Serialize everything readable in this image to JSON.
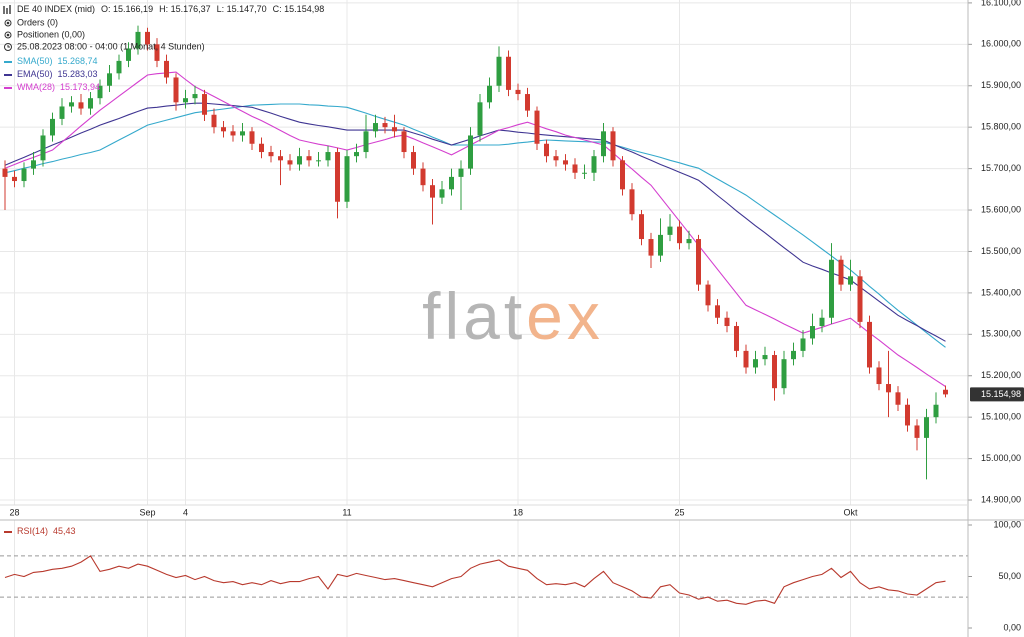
{
  "chart_data": [
    {
      "type": "candlestick",
      "title": "DE 40 INDEX (mid)",
      "ohlc_labels": [
        "O: 15.166,19",
        "H: 15.176,37",
        "L: 15.147,70",
        "C: 15.154,98"
      ],
      "info": [
        "Orders (0)",
        "Positionen (0,00)",
        "25.08.2023 08:00 - 04:00  (1 Monat, 4 Stunden)"
      ],
      "watermark": [
        "flat",
        "ex"
      ],
      "up_color": "#2f9e41",
      "down_color": "#d23a2f",
      "grid": true,
      "categories": [
        null,
        "28",
        null,
        null,
        null,
        null,
        null,
        null,
        null,
        null,
        null,
        null,
        null,
        null,
        null,
        "Sep",
        null,
        null,
        null,
        "4",
        null,
        null,
        null,
        null,
        null,
        null,
        null,
        null,
        null,
        null,
        null,
        null,
        null,
        null,
        null,
        null,
        "11",
        null,
        null,
        null,
        null,
        null,
        null,
        null,
        null,
        null,
        null,
        null,
        null,
        null,
        null,
        null,
        null,
        null,
        "18",
        null,
        null,
        null,
        null,
        null,
        null,
        null,
        null,
        null,
        null,
        null,
        null,
        null,
        null,
        null,
        null,
        "25",
        null,
        null,
        null,
        null,
        null,
        null,
        null,
        null,
        null,
        null,
        null,
        null,
        null,
        null,
        null,
        null,
        null,
        "Okt",
        null,
        null,
        null,
        null,
        null,
        null,
        null,
        null,
        null,
        null
      ],
      "open": [
        15700,
        15680,
        15670,
        15700,
        15720,
        15780,
        15820,
        15850,
        15860,
        15845,
        15870,
        15900,
        15930,
        15960,
        15990,
        16030,
        16000,
        15960,
        15920,
        15860,
        15870,
        15880,
        15830,
        15800,
        15790,
        15780,
        15790,
        15760,
        15740,
        15730,
        15720,
        15710,
        15730,
        15720,
        15720,
        15740,
        15620,
        15730,
        15740,
        15790,
        15810,
        15800,
        15790,
        15740,
        15700,
        15660,
        15630,
        15650,
        15680,
        15700,
        15780,
        15860,
        15900,
        15970,
        15890,
        15880,
        15840,
        15760,
        15730,
        15720,
        15710,
        15690,
        15690,
        15730,
        15790,
        15720,
        15650,
        15590,
        15530,
        15490,
        15540,
        15560,
        15520,
        15530,
        15420,
        15370,
        15340,
        15320,
        15260,
        15220,
        15240,
        15250,
        15170,
        15240,
        15260,
        15290,
        15320,
        15340,
        15480,
        15420,
        15440,
        15330,
        15220,
        15180,
        15160,
        15130,
        15080,
        15050,
        15100,
        15166.19
      ],
      "high": [
        15720,
        15695,
        15715,
        15740,
        15795,
        15835,
        15870,
        15875,
        15880,
        15885,
        15915,
        15950,
        15975,
        16005,
        16045,
        16040,
        16015,
        15975,
        15930,
        15890,
        15900,
        15890,
        15845,
        15815,
        15805,
        15810,
        15800,
        15775,
        15755,
        15745,
        15735,
        15750,
        15745,
        15740,
        15755,
        15750,
        15745,
        15760,
        15830,
        15830,
        15825,
        15830,
        15800,
        15755,
        15715,
        15675,
        15670,
        15700,
        15720,
        15800,
        15880,
        15920,
        15995,
        15985,
        15905,
        15895,
        15850,
        15770,
        15745,
        15735,
        15725,
        15710,
        15745,
        15810,
        15800,
        15730,
        15665,
        15600,
        15545,
        15580,
        15590,
        15575,
        15550,
        15540,
        15430,
        15385,
        15355,
        15330,
        15275,
        15260,
        15270,
        15260,
        15260,
        15280,
        15310,
        15350,
        15360,
        15520,
        15490,
        15480,
        15455,
        15345,
        15235,
        15260,
        15175,
        15145,
        15095,
        15120,
        15160,
        15176.37
      ],
      "low": [
        15600,
        15655,
        15655,
        15685,
        15705,
        15765,
        15805,
        15835,
        15830,
        15830,
        15855,
        15885,
        15915,
        15945,
        15975,
        15985,
        15945,
        15905,
        15840,
        15845,
        15855,
        15815,
        15785,
        15775,
        15765,
        15765,
        15745,
        15725,
        15715,
        15660,
        15695,
        15695,
        15705,
        15705,
        15705,
        15580,
        15605,
        15715,
        15725,
        15775,
        15785,
        15775,
        15725,
        15685,
        15645,
        15565,
        15615,
        15635,
        15600,
        15685,
        15765,
        15845,
        15885,
        15875,
        15865,
        15825,
        15745,
        15715,
        15705,
        15695,
        15675,
        15675,
        15670,
        15715,
        15705,
        15635,
        15575,
        15515,
        15460,
        15475,
        15525,
        15505,
        15505,
        15405,
        15355,
        15325,
        15305,
        15245,
        15205,
        15205,
        15225,
        15140,
        15155,
        15225,
        15245,
        15275,
        15305,
        15325,
        15405,
        15405,
        15315,
        15205,
        15165,
        15100,
        15115,
        15065,
        15020,
        14950,
        15085,
        15147.7
      ],
      "close": [
        15680,
        15670,
        15700,
        15720,
        15780,
        15820,
        15850,
        15860,
        15845,
        15870,
        15900,
        15930,
        15960,
        15990,
        16030,
        16000,
        15960,
        15920,
        15860,
        15870,
        15880,
        15830,
        15800,
        15790,
        15780,
        15790,
        15760,
        15740,
        15730,
        15720,
        15710,
        15730,
        15720,
        15720,
        15740,
        15620,
        15730,
        15740,
        15790,
        15810,
        15800,
        15790,
        15740,
        15700,
        15660,
        15630,
        15650,
        15680,
        15700,
        15780,
        15860,
        15900,
        15970,
        15890,
        15880,
        15840,
        15760,
        15730,
        15720,
        15710,
        15690,
        15690,
        15730,
        15790,
        15720,
        15650,
        15590,
        15530,
        15490,
        15540,
        15560,
        15520,
        15530,
        15420,
        15370,
        15340,
        15320,
        15260,
        15220,
        15240,
        15250,
        15170,
        15240,
        15260,
        15290,
        15320,
        15340,
        15480,
        15420,
        15440,
        15330,
        15220,
        15180,
        15160,
        15130,
        15080,
        15050,
        15100,
        15130,
        15154.98
      ],
      "series": [
        {
          "name": "SMA(50)",
          "color": "#35a9cc",
          "last_value_label": "15.268,74",
          "values": [
            15690,
            15695,
            15701,
            15706,
            15712,
            15717,
            15723,
            15728,
            15734,
            15739,
            15745,
            15757,
            15769,
            15781,
            15793,
            15805,
            15811,
            15817,
            15823,
            15829,
            15835,
            15838,
            15841,
            15844,
            15847,
            15850,
            15853,
            15854,
            15855,
            15856,
            15856,
            15856,
            15854,
            15853,
            15851,
            15850,
            15848,
            15841,
            15834,
            15826,
            15819,
            15812,
            15805,
            15795,
            15786,
            15776,
            15767,
            15757,
            15757,
            15757,
            15757,
            15757,
            15757,
            15759,
            15762,
            15764,
            15767,
            15769,
            15768,
            15767,
            15766,
            15765,
            15764,
            15764,
            15758,
            15752,
            15745,
            15739,
            15733,
            15727,
            15720,
            15714,
            15707,
            15701,
            15688,
            15675,
            15662,
            15649,
            15636,
            15620,
            15604,
            15588,
            15572,
            15556,
            15540,
            15523,
            15506,
            15489,
            15472,
            15455,
            15436,
            15416,
            15397,
            15377,
            15358,
            15340,
            15322,
            15304,
            15286,
            15268.74
          ]
        },
        {
          "name": "EMA(50)",
          "color": "#3f3592",
          "last_value_label": "15.283,03",
          "values": [
            15708,
            15718,
            15727,
            15737,
            15747,
            15757,
            15766,
            15776,
            15786,
            15795,
            15805,
            15813,
            15821,
            15830,
            15838,
            15846,
            15848,
            15851,
            15853,
            15856,
            15858,
            15858,
            15856,
            15854,
            15852,
            15850,
            15848,
            15841,
            15834,
            15826,
            15819,
            15812,
            15808,
            15804,
            15801,
            15797,
            15793,
            15793,
            15793,
            15793,
            15793,
            15793,
            15793,
            15786,
            15779,
            15771,
            15764,
            15757,
            15764,
            15771,
            15779,
            15786,
            15793,
            15791,
            15788,
            15786,
            15783,
            15781,
            15779,
            15777,
            15775,
            15773,
            15771,
            15769,
            15759,
            15749,
            15740,
            15730,
            15720,
            15710,
            15701,
            15691,
            15682,
            15672,
            15654,
            15635,
            15617,
            15598,
            15580,
            15562,
            15545,
            15527,
            15509,
            15492,
            15474,
            15465,
            15457,
            15448,
            15440,
            15431,
            15414,
            15397,
            15380,
            15363,
            15346,
            15333,
            15321,
            15308,
            15296,
            15283.03
          ]
        },
        {
          "name": "WMA(28)",
          "color": "#d43fcf",
          "last_value_label": "15.173,94",
          "values": [
            15701,
            15710,
            15719,
            15727,
            15736,
            15745,
            15764,
            15783,
            15803,
            15822,
            15841,
            15858,
            15875,
            15892,
            15909,
            15926,
            15929,
            15931,
            15933,
            15915,
            15898,
            15886,
            15874,
            15862,
            15850,
            15838,
            15826,
            15816,
            15804,
            15792,
            15780,
            15769,
            15764,
            15759,
            15755,
            15750,
            15745,
            15751,
            15758,
            15764,
            15770,
            15777,
            15781,
            15772,
            15762,
            15753,
            15743,
            15733,
            15745,
            15757,
            15769,
            15781,
            15793,
            15799,
            15806,
            15812,
            15804,
            15796,
            15789,
            15781,
            15775,
            15769,
            15763,
            15757,
            15738,
            15718,
            15699,
            15679,
            15660,
            15631,
            15602,
            15573,
            15544,
            15515,
            15486,
            15457,
            15428,
            15399,
            15370,
            15359,
            15348,
            15337,
            15325,
            15314,
            15303,
            15310,
            15317,
            15325,
            15332,
            15339,
            15321,
            15303,
            15286,
            15268,
            15250,
            15235,
            15220,
            15204,
            15189,
            15173.94
          ]
        }
      ],
      "ylim": [
        14888,
        16107
      ],
      "yticks": [
        {
          "value": 16100,
          "label": "16.100,00"
        },
        {
          "value": 16000,
          "label": "16.000,00"
        },
        {
          "value": 15900,
          "label": "15.900,00"
        },
        {
          "value": 15800,
          "label": "15.800,00"
        },
        {
          "value": 15700,
          "label": "15.700,00"
        },
        {
          "value": 15600,
          "label": "15.600,00"
        },
        {
          "value": 15500,
          "label": "15.500,00"
        },
        {
          "value": 15400,
          "label": "15.400,00"
        },
        {
          "value": 15300,
          "label": "15.300,00"
        },
        {
          "value": 15200,
          "label": "15.200,00"
        },
        {
          "value": 15100,
          "label": "15.100,00"
        },
        {
          "value": 15000,
          "label": "15.000,00"
        },
        {
          "value": 14900,
          "label": "14.900,00"
        }
      ],
      "last_price": {
        "value": 15154.98,
        "label": "15.154,98"
      }
    },
    {
      "type": "line",
      "series": [
        {
          "name": "RSI(14)",
          "color": "#b8392d",
          "last_value_label": "45,43",
          "values": [
            49,
            52,
            50,
            54,
            55,
            57,
            58,
            60,
            64,
            70,
            55,
            57,
            60,
            58,
            62,
            60,
            56,
            52,
            49,
            51,
            47,
            50,
            46,
            44,
            45,
            42,
            44,
            42,
            46,
            43,
            45,
            45,
            48,
            50,
            38,
            52,
            50,
            53,
            51,
            49,
            47,
            48,
            46,
            44,
            42,
            40,
            44,
            48,
            50,
            58,
            62,
            64,
            66,
            60,
            58,
            56,
            48,
            42,
            43,
            42,
            44,
            40,
            48,
            55,
            44,
            40,
            36,
            30,
            29,
            40,
            42,
            34,
            32,
            28,
            30,
            26,
            27,
            24,
            23,
            26,
            27,
            24,
            40,
            44,
            47,
            50,
            52,
            58,
            49,
            55,
            44,
            38,
            40,
            37,
            36,
            33,
            32,
            38,
            44,
            45.43
          ]
        }
      ],
      "ylim": [
        0,
        100
      ],
      "yticks": [
        {
          "value": 100,
          "label": "100,00"
        },
        {
          "value": 50,
          "label": "50,00"
        },
        {
          "value": 0,
          "label": "0,00"
        }
      ],
      "reference_lines": [
        70,
        30
      ]
    }
  ]
}
